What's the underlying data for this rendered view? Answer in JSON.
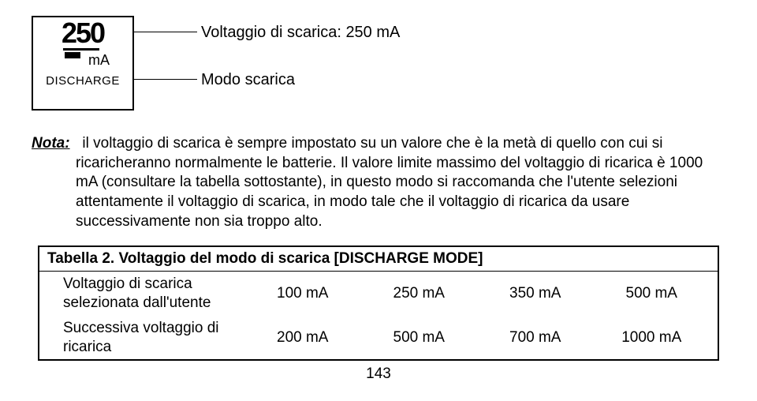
{
  "lcd": {
    "value": "250",
    "unit": "mA",
    "mode": "DISCHARGE"
  },
  "callouts": {
    "voltage": "Voltaggio di scarica: 250 mA",
    "mode": "Modo scarica"
  },
  "note": {
    "label": "Nota:",
    "text": "il voltaggio di scarica è sempre impostato su un valore che è la metà di quello con cui si ricaricheranno normalmente le batterie. Il valore limite massimo del voltaggio di ricarica è 1000 mA (consultare la tabella sottostante), in questo modo si raccomanda che l'utente selezioni attentamente il voltaggio di scarica, in modo tale che il voltaggio di ricarica da usare successivamente non sia troppo alto."
  },
  "table": {
    "title": "Tabella 2. Voltaggio del modo di scarica [DISCHARGE MODE]",
    "rows": [
      {
        "label": "Voltaggio di scarica selezionata dall'utente",
        "cells": [
          "100 mA",
          "250 mA",
          "350 mA",
          "500 mA"
        ]
      },
      {
        "label": "Successiva voltaggio di ricarica",
        "cells": [
          "200 mA",
          "500 mA",
          "700 mA",
          "1000 mA"
        ]
      }
    ]
  },
  "page": "143"
}
